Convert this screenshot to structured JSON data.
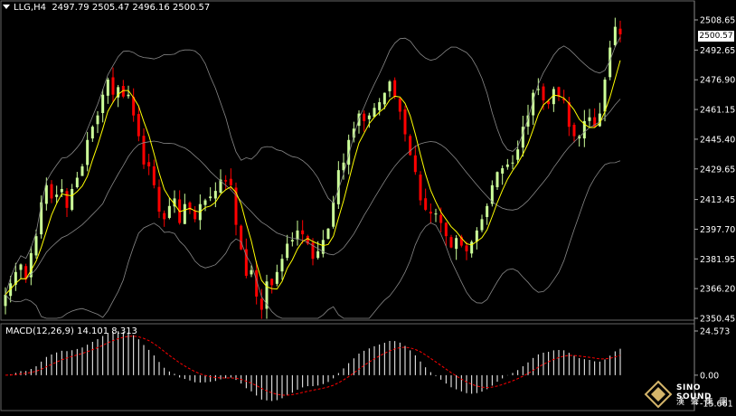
{
  "header": {
    "symbol": "LLG,H4",
    "ohlc": "2497.79 2505.47 2496.16 2500.57"
  },
  "price_axis": {
    "ticks": [
      "2508.65",
      "2492.65",
      "2476.90",
      "2461.15",
      "2445.40",
      "2429.65",
      "2413.45",
      "2397.70",
      "2381.95",
      "2366.20",
      "2350.45"
    ],
    "current_price": "2500.57"
  },
  "macd": {
    "label": "MACD(12,26,9) 14.101 8.313",
    "ticks": [
      "24.573",
      "0.00",
      "-15.661"
    ]
  },
  "logo": {
    "line1": "SINO SOUND",
    "line2": "漢 聲 集 團"
  },
  "colors": {
    "background": "#000000",
    "bull_candle": "#ccff99",
    "bear_candle": "#ff0000",
    "ma_line": "#ffff00",
    "band_line": "#888888",
    "macd_hist": "#ffffff",
    "macd_signal": "#ff0000"
  },
  "chart_data": {
    "type": "line",
    "title": "LLG,H4",
    "ylim": [
      2350.45,
      2508.65
    ],
    "close": [
      2363,
      2369,
      2375,
      2379,
      2371,
      2385,
      2394,
      2412,
      2421,
      2414,
      2416,
      2419,
      2409,
      2419,
      2425,
      2431,
      2445,
      2452,
      2458,
      2469,
      2477,
      2469,
      2473,
      2468,
      2469,
      2458,
      2447,
      2432,
      2431,
      2421,
      2407,
      2403,
      2410,
      2414,
      2401,
      2411,
      2408,
      2403,
      2411,
      2413,
      2415,
      2418,
      2424,
      2423,
      2421,
      2400,
      2387,
      2373,
      2376,
      2362,
      2355,
      2370,
      2368,
      2375,
      2382,
      2390,
      2392,
      2397,
      2395,
      2390,
      2382,
      2386,
      2392,
      2398,
      2412,
      2429,
      2433,
      2445,
      2451,
      2459,
      2455,
      2458,
      2462,
      2465,
      2470,
      2476,
      2468,
      2460,
      2448,
      2437,
      2428,
      2413,
      2408,
      2406,
      2406,
      2401,
      2394,
      2388,
      2393,
      2389,
      2386,
      2391,
      2397,
      2403,
      2410,
      2421,
      2428,
      2430,
      2432,
      2433,
      2440,
      2452,
      2458,
      2470,
      2472,
      2466,
      2464,
      2472,
      2468,
      2466,
      2452,
      2447,
      2447,
      2455,
      2457,
      2452,
      2459,
      2477,
      2494,
      2505,
      2501
    ]
  }
}
